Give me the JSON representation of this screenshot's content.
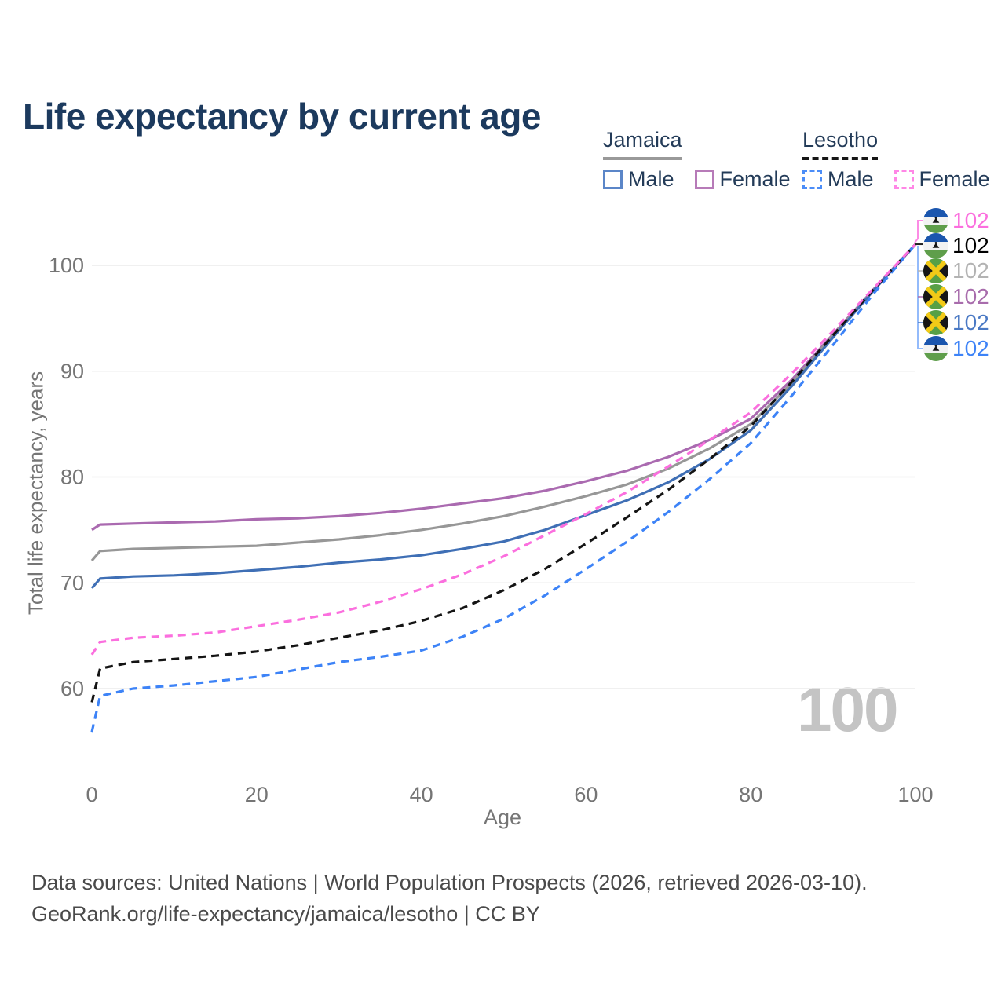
{
  "title": "Life expectancy by current age",
  "legend": {
    "groups": [
      {
        "country": "Jamaica",
        "line_style": "solid",
        "line_color": "#999999",
        "items": [
          {
            "label": "Male",
            "color": "#5b86c8",
            "dashed": false
          },
          {
            "label": "Female",
            "color": "#b77bb8",
            "dashed": false
          }
        ]
      },
      {
        "country": "Lesotho",
        "line_style": "dashed",
        "line_color": "#161616",
        "items": [
          {
            "label": "Male",
            "color": "#4b8df8",
            "dashed": true
          },
          {
            "label": "Female",
            "color": "#ff87e6",
            "dashed": true
          }
        ]
      }
    ]
  },
  "axes": {
    "x": {
      "label": "Age",
      "ticks": [
        0,
        20,
        40,
        60,
        80,
        100
      ],
      "range": [
        0,
        100
      ]
    },
    "y": {
      "label": "Total life expectancy, years",
      "ticks": [
        60,
        70,
        80,
        90,
        100
      ],
      "range": [
        55,
        103
      ]
    }
  },
  "watermark": "100",
  "annotations": [
    {
      "flag": "lesotho",
      "value": "102",
      "color": "#fb6fde"
    },
    {
      "flag": "lesotho",
      "value": "102",
      "color": "#000000"
    },
    {
      "flag": "jamaica",
      "value": "102",
      "color": "#b3b3b3"
    },
    {
      "flag": "jamaica",
      "value": "102",
      "color": "#a86cac"
    },
    {
      "flag": "jamaica",
      "value": "102",
      "color": "#4a79c4"
    },
    {
      "flag": "lesotho",
      "value": "102",
      "color": "#3d83f7"
    }
  ],
  "footer": {
    "line1": "Data sources: United Nations | World Population Prospects (2026, retrieved 2026-03-10).",
    "line2": "GeoRank.org/life-expectancy/jamaica/lesotho | CC BY"
  },
  "chart_data": {
    "type": "line",
    "title": "Life expectancy by current age",
    "xlabel": "Age",
    "ylabel": "Total life expectancy, years",
    "xlim": [
      0,
      100
    ],
    "ylim": [
      55,
      103
    ],
    "grid": "horizontal",
    "x": [
      0,
      1,
      5,
      10,
      15,
      20,
      25,
      30,
      35,
      40,
      45,
      50,
      55,
      60,
      65,
      70,
      75,
      80,
      85,
      90,
      95,
      100
    ],
    "series": [
      {
        "name": "Jamaica Male",
        "style": "solid",
        "color": "#3f6fb5",
        "values": [
          69.5,
          70.4,
          70.6,
          70.7,
          70.9,
          71.2,
          71.5,
          71.9,
          72.2,
          72.6,
          73.2,
          73.9,
          75.0,
          76.4,
          77.8,
          79.5,
          81.7,
          84.4,
          88.6,
          93.2,
          97.7,
          102
        ]
      },
      {
        "name": "Jamaica Female",
        "style": "solid",
        "color": "#aa6ab0",
        "values": [
          75.0,
          75.5,
          75.6,
          75.7,
          75.8,
          76.0,
          76.1,
          76.3,
          76.6,
          77.0,
          77.5,
          78.0,
          78.7,
          79.6,
          80.6,
          81.9,
          83.5,
          85.5,
          89.2,
          93.5,
          97.8,
          102
        ]
      },
      {
        "name": "Jamaica",
        "style": "solid",
        "color": "#979797",
        "values": [
          72.1,
          73.0,
          73.2,
          73.3,
          73.4,
          73.5,
          73.8,
          74.1,
          74.5,
          75.0,
          75.6,
          76.3,
          77.2,
          78.2,
          79.3,
          80.8,
          82.7,
          85.0,
          88.9,
          93.4,
          97.7,
          102
        ]
      },
      {
        "name": "Lesotho Male",
        "style": "dashed",
        "color": "#3d83f7",
        "values": [
          55.9,
          59.3,
          60.0,
          60.3,
          60.7,
          61.1,
          61.8,
          62.5,
          63.0,
          63.6,
          64.9,
          66.6,
          68.8,
          71.3,
          73.9,
          76.7,
          79.8,
          83.2,
          87.7,
          92.5,
          97.4,
          102
        ]
      },
      {
        "name": "Lesotho Female",
        "style": "dashed",
        "color": "#fb6fde",
        "values": [
          63.2,
          64.4,
          64.8,
          65.0,
          65.3,
          65.9,
          66.5,
          67.2,
          68.2,
          69.4,
          70.8,
          72.5,
          74.5,
          76.5,
          78.6,
          81.0,
          83.5,
          86.1,
          89.8,
          93.8,
          97.9,
          102
        ]
      },
      {
        "name": "Lesotho",
        "style": "dashed",
        "color": "#141414",
        "values": [
          58.7,
          61.9,
          62.5,
          62.8,
          63.1,
          63.5,
          64.1,
          64.8,
          65.5,
          66.4,
          67.6,
          69.3,
          71.3,
          73.7,
          76.2,
          78.8,
          81.7,
          84.8,
          89.0,
          93.4,
          97.8,
          102
        ]
      }
    ]
  }
}
